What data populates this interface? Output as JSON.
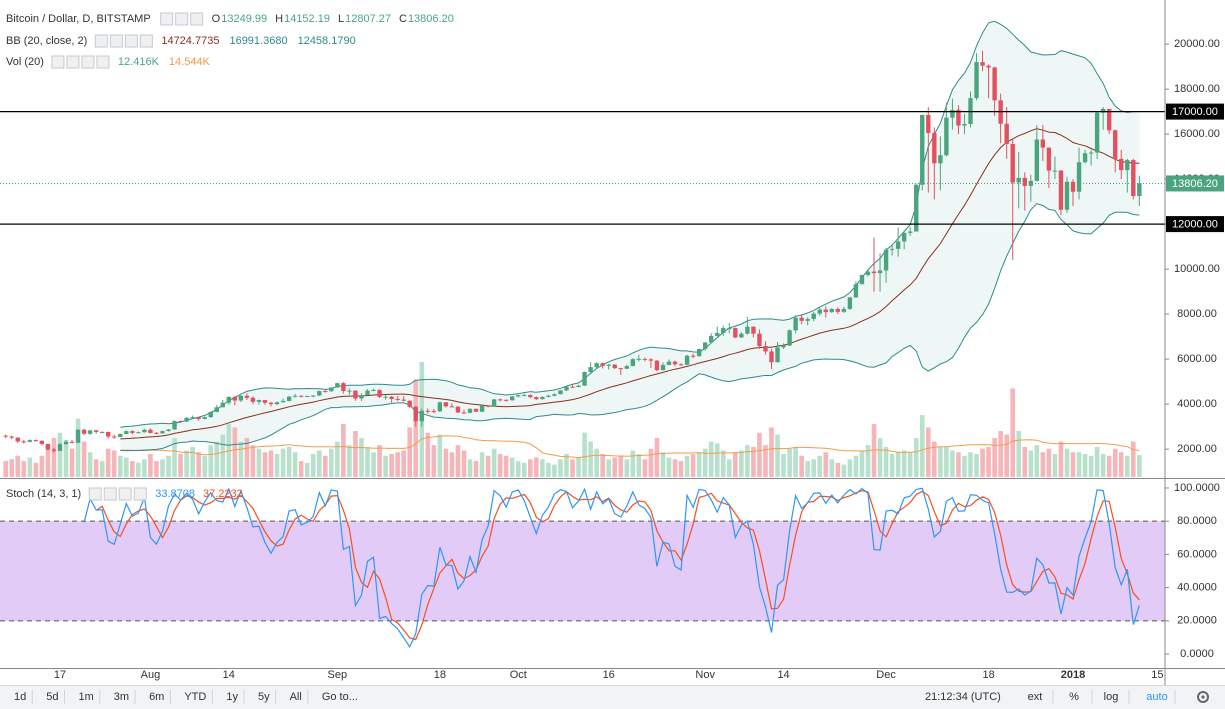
{
  "chart_data": {
    "type": "candlestick",
    "title": "Bitcoin / Dollar, D, BITSTAMP",
    "ohlc_legend": [
      {
        "key": "O",
        "value": "13249.99"
      },
      {
        "key": "H",
        "value": "14152.19"
      },
      {
        "key": "L",
        "value": "12807.27"
      },
      {
        "key": "C",
        "value": "13806.20"
      }
    ],
    "indicators": [
      {
        "name": "BB (20, close, 2)",
        "values": [
          "14724.7735",
          "16991.3680",
          "12458.1790"
        ]
      },
      {
        "name": "Vol (20)",
        "values": [
          "12.416K",
          "14.544K"
        ]
      }
    ],
    "categories": [
      null,
      null,
      null,
      null,
      null,
      null,
      null,
      null,
      null,
      "17",
      null,
      null,
      null,
      null,
      null,
      null,
      null,
      null,
      null,
      null,
      null,
      null,
      null,
      null,
      "Aug",
      null,
      null,
      null,
      null,
      null,
      null,
      null,
      null,
      null,
      null,
      null,
      null,
      "14",
      null,
      null,
      null,
      null,
      null,
      null,
      null,
      null,
      null,
      null,
      null,
      null,
      null,
      null,
      null,
      null,
      null,
      "Sep",
      null,
      null,
      null,
      null,
      null,
      null,
      null,
      null,
      null,
      null,
      null,
      null,
      null,
      null,
      null,
      null,
      "18",
      null,
      null,
      null,
      null,
      null,
      null,
      null,
      null,
      null,
      null,
      null,
      null,
      "Oct",
      null,
      null,
      null,
      null,
      null,
      null,
      null,
      null,
      null,
      null,
      null,
      null,
      null,
      null,
      "16",
      null,
      null,
      null,
      null,
      null,
      null,
      null,
      null,
      null,
      null,
      null,
      null,
      null,
      null,
      null,
      "Nov",
      null,
      null,
      null,
      null,
      null,
      null,
      null,
      null,
      null,
      null,
      null,
      null,
      "14",
      null,
      null,
      null,
      null,
      null,
      null,
      null,
      null,
      null,
      null,
      null,
      null,
      null,
      null,
      null,
      null,
      "Dec",
      null,
      null,
      null,
      null,
      null,
      null,
      null,
      null,
      null,
      null,
      null,
      null,
      null,
      null,
      null,
      null,
      "18",
      null,
      null,
      null,
      null,
      null,
      null,
      null,
      null,
      null,
      null,
      null,
      null,
      null,
      "2018",
      null,
      null,
      null,
      null,
      null,
      null,
      null,
      null,
      null,
      null,
      null,
      null,
      null,
      "15"
    ],
    "open": [
      2600,
      2560,
      2510,
      2340,
      2320,
      2400,
      2370,
      2230,
      1980,
      1920,
      2220,
      2320,
      2280,
      2860,
      2680,
      2830,
      2760,
      2760,
      2560,
      2540,
      2670,
      2800,
      2720,
      2750,
      2860,
      2720,
      2700,
      2800,
      2870,
      3250,
      3220,
      3390,
      3420,
      3340,
      3420,
      3650,
      3860,
      4060,
      4320,
      4160,
      4370,
      4280,
      4100,
      4180,
      4060,
      4000,
      4080,
      4140,
      4330,
      4370,
      4340,
      4360,
      4380,
      4580,
      4570,
      4740,
      4930,
      4580,
      4600,
      4250,
      4400,
      4600,
      4630,
      4320,
      4330,
      4230,
      4200,
      4150,
      3880,
      3240,
      3700,
      3690,
      3680,
      4080,
      3900,
      3890,
      3630,
      3610,
      3790,
      3660,
      3930,
      3890,
      4210,
      4190,
      4170,
      4340,
      4400,
      4400,
      4310,
      4220,
      4320,
      4370,
      4440,
      4610,
      4770,
      4760,
      4820,
      5430,
      5640,
      5820,
      5700,
      5750,
      5600,
      5570,
      5690,
      6000,
      6010,
      5990,
      5930,
      5510,
      5740,
      5890,
      5770,
      5750,
      6150,
      6130,
      6450,
      6740,
      7030,
      7160,
      7380,
      7380,
      6960,
      7130,
      7440,
      7130,
      6580,
      6340,
      5860,
      6520,
      6600,
      7280,
      7840,
      7700,
      7780,
      8020,
      8200,
      8090,
      8230,
      8100,
      8230,
      8740,
      9330,
      9740,
      9890,
      9820,
      9940,
      10860,
      10900,
      11230,
      11610,
      11670,
      13750,
      16850,
      16050,
      14700,
      15060,
      16730,
      17080,
      16380,
      16450,
      17600,
      19200,
      19040,
      18960,
      17500,
      16460,
      15560,
      13850,
      14050,
      13700,
      13920,
      15760,
      15400,
      14380,
      14380,
      12640,
      13880,
      13440,
      14750,
      15150,
      15180,
      16950,
      17120,
      16170,
      14900,
      14400,
      14850,
      13249.99,
      null,
      null,
      null
    ],
    "high": [
      2640,
      2600,
      2530,
      2410,
      2430,
      2430,
      2390,
      2240,
      2060,
      2270,
      2400,
      2410,
      2900,
      2900,
      2860,
      2850,
      2800,
      2780,
      2630,
      2690,
      2830,
      2830,
      2780,
      2900,
      2920,
      2760,
      2820,
      2890,
      3280,
      3270,
      3420,
      3490,
      3430,
      3450,
      3680,
      3960,
      4190,
      4330,
      4350,
      4400,
      4480,
      4350,
      4200,
      4190,
      4100,
      4120,
      4250,
      4370,
      4450,
      4390,
      4380,
      4400,
      4600,
      4650,
      4750,
      4950,
      4980,
      4700,
      4610,
      4480,
      4660,
      4690,
      4640,
      4410,
      4360,
      4360,
      4360,
      4160,
      3920,
      3800,
      3810,
      3780,
      4110,
      4090,
      4040,
      3900,
      3760,
      3810,
      3800,
      3960,
      3970,
      4230,
      4250,
      4210,
      4360,
      4410,
      4470,
      4440,
      4340,
      4350,
      4420,
      4470,
      4620,
      4790,
      4880,
      4860,
      5440,
      5860,
      5850,
      5850,
      5780,
      5780,
      5610,
      5750,
      6040,
      6190,
      6070,
      6040,
      5960,
      5860,
      5980,
      5930,
      5820,
      6190,
      6240,
      6460,
      6760,
      7150,
      7450,
      7500,
      7600,
      7400,
      7200,
      7880,
      7460,
      7320,
      6800,
      6450,
      6760,
      6700,
      7320,
      7950,
      8000,
      7860,
      8100,
      8280,
      8350,
      8260,
      8300,
      8330,
      8770,
      9460,
      9750,
      10000,
      11400,
      10700,
      10940,
      11100,
      11850,
      11630,
      11860,
      13800,
      16870,
      17200,
      16300,
      15900,
      17400,
      17580,
      17280,
      16900,
      17900,
      19600,
      19700,
      19100,
      19000,
      17800,
      17200,
      15800,
      15200,
      14300,
      14200,
      16400,
      16400,
      15400,
      15000,
      14400,
      14100,
      14000,
      15400,
      15300,
      15300,
      17000,
      17200,
      17100,
      16200,
      15300,
      14900,
      14900,
      14152.19,
      null,
      null,
      null
    ],
    "low": [
      2480,
      2450,
      2270,
      2250,
      2300,
      2330,
      2160,
      1960,
      1840,
      1910,
      2200,
      2250,
      2270,
      2620,
      2620,
      2680,
      2700,
      2460,
      2460,
      2530,
      2660,
      2660,
      2700,
      2730,
      2690,
      2650,
      2680,
      2780,
      2860,
      3180,
      3200,
      3370,
      3260,
      3320,
      3400,
      3640,
      3850,
      3980,
      3950,
      4100,
      4180,
      3990,
      3980,
      3970,
      3900,
      3950,
      4080,
      4120,
      4290,
      4300,
      4320,
      4300,
      4360,
      4510,
      4550,
      4720,
      4470,
      4410,
      4150,
      4140,
      4390,
      4570,
      4270,
      4200,
      4060,
      4140,
      4120,
      3830,
      3000,
      2980,
      3580,
      3600,
      3650,
      3850,
      3850,
      3600,
      3560,
      3600,
      3650,
      3650,
      3850,
      3880,
      4120,
      4110,
      4150,
      4300,
      4370,
      4260,
      4180,
      4200,
      4300,
      4340,
      4430,
      4580,
      4730,
      4750,
      4810,
      5410,
      5560,
      5580,
      5530,
      5560,
      5300,
      5560,
      5680,
      5900,
      5900,
      5600,
      5460,
      5490,
      5720,
      5680,
      5700,
      5730,
      6040,
      6110,
      6370,
      6730,
      7000,
      7030,
      7150,
      6930,
      6950,
      7090,
      6960,
      6460,
      6200,
      5560,
      5850,
      6450,
      6580,
      7140,
      7550,
      7500,
      7680,
      7930,
      7850,
      8050,
      8000,
      8050,
      8180,
      8730,
      9320,
      9660,
      9000,
      9000,
      9400,
      10600,
      10550,
      10880,
      11470,
      11670,
      13500,
      13400,
      13100,
      13500,
      15000,
      16200,
      16000,
      16000,
      16300,
      17500,
      18800,
      17600,
      16800,
      15600,
      14900,
      10400,
      12700,
      12600,
      13000,
      13900,
      14800,
      13600,
      14000,
      12400,
      12500,
      12800,
      13100,
      14700,
      14600,
      14900,
      16200,
      16000,
      14300,
      14000,
      13400,
      13100,
      12807.27,
      null,
      null,
      null
    ],
    "close": [
      2560,
      2510,
      2340,
      2320,
      2400,
      2370,
      2230,
      1980,
      1920,
      2220,
      2320,
      2280,
      2860,
      2680,
      2830,
      2760,
      2760,
      2560,
      2540,
      2670,
      2800,
      2720,
      2750,
      2860,
      2720,
      2700,
      2800,
      2870,
      3250,
      3220,
      3390,
      3420,
      3340,
      3420,
      3650,
      3860,
      4060,
      4320,
      4160,
      4370,
      4280,
      4100,
      4180,
      4060,
      4000,
      4080,
      4140,
      4330,
      4370,
      4340,
      4360,
      4380,
      4580,
      4570,
      4740,
      4930,
      4580,
      4600,
      4250,
      4400,
      4600,
      4630,
      4320,
      4330,
      4230,
      4200,
      4150,
      3880,
      3240,
      3700,
      3690,
      3680,
      4080,
      3900,
      3890,
      3630,
      3610,
      3790,
      3660,
      3930,
      3890,
      4210,
      4190,
      4170,
      4340,
      4400,
      4400,
      4310,
      4220,
      4320,
      4370,
      4440,
      4610,
      4770,
      4760,
      4820,
      5430,
      5640,
      5820,
      5700,
      5750,
      5600,
      5570,
      5690,
      6000,
      6010,
      5990,
      5930,
      5510,
      5740,
      5890,
      5770,
      5750,
      6150,
      6130,
      6450,
      6740,
      7030,
      7160,
      7380,
      7380,
      6960,
      7130,
      7440,
      7130,
      6580,
      6340,
      5860,
      6520,
      6600,
      7280,
      7840,
      7700,
      7780,
      8020,
      8200,
      8090,
      8230,
      8100,
      8230,
      8740,
      9330,
      9740,
      9890,
      9820,
      9940,
      10860,
      10900,
      11230,
      11610,
      11670,
      13750,
      16850,
      16050,
      14700,
      15060,
      16730,
      17080,
      16380,
      16450,
      17600,
      19200,
      19040,
      18960,
      17500,
      16460,
      15560,
      13850,
      14050,
      13700,
      13920,
      15760,
      15400,
      14380,
      14380,
      12640,
      13880,
      13440,
      14750,
      15150,
      15180,
      16950,
      17120,
      16170,
      14900,
      14400,
      14850,
      13249.99,
      13806.2,
      null,
      null,
      null
    ],
    "volume": [
      9000,
      10000,
      12000,
      9000,
      11000,
      8000,
      12000,
      18000,
      22000,
      25000,
      21000,
      16000,
      33000,
      20000,
      14000,
      10000,
      9000,
      16000,
      15000,
      12000,
      11000,
      9000,
      8000,
      10000,
      13000,
      9000,
      10000,
      12000,
      22000,
      13000,
      15000,
      17000,
      14000,
      12000,
      18000,
      20000,
      24000,
      30000,
      28000,
      20000,
      22000,
      18000,
      16000,
      14000,
      15000,
      13000,
      16000,
      17000,
      14000,
      9000,
      8000,
      13000,
      15000,
      12000,
      16000,
      20000,
      30000,
      18000,
      26000,
      22000,
      17000,
      14000,
      18000,
      12000,
      13000,
      14000,
      15000,
      28000,
      55000,
      65000,
      25000,
      18000,
      24000,
      16000,
      14000,
      18000,
      15000,
      10000,
      9000,
      14000,
      12000,
      16000,
      13000,
      12000,
      11000,
      9000,
      8000,
      10000,
      11000,
      10000,
      8000,
      7000,
      10000,
      13000,
      10000,
      11000,
      25000,
      20000,
      16000,
      13000,
      10000,
      11000,
      12000,
      10000,
      15000,
      13000,
      10000,
      16000,
      22000,
      14000,
      11000,
      10000,
      9000,
      12000,
      13000,
      14000,
      16000,
      20000,
      19000,
      15000,
      10000,
      14000,
      15000,
      18000,
      17000,
      25000,
      18000,
      28000,
      24000,
      13000,
      16000,
      17000,
      12000,
      9000,
      10000,
      12000,
      14000,
      10000,
      8000,
      7000,
      10000,
      12000,
      15000,
      18000,
      30000,
      22000,
      17000,
      13000,
      14000,
      15000,
      14000,
      22000,
      35000,
      28000,
      20000,
      17000,
      17000,
      15000,
      14000,
      12000,
      14000,
      13000,
      16000,
      17000,
      22000,
      26000,
      24000,
      50000,
      26000,
      17000,
      15000,
      18000,
      14000,
      16000,
      13000,
      20000,
      16000,
      14000,
      14000,
      13000,
      12000,
      17000,
      13000,
      12000,
      16000,
      14000,
      12000,
      20000,
      12416,
      null,
      null,
      null
    ],
    "up_color": "#4aa57f",
    "down_color": "#e3505f",
    "volume_up_color": "#b7e1cc",
    "volume_down_color": "#f6b5b8",
    "bb_color": "#2e8b88",
    "bb_basis_color": "#8a2f1d",
    "bb_fill": "#eef7f6",
    "volume_ma_color": "#f39c4a",
    "ylim": [
      760,
      21960
    ],
    "yticks": [
      {
        "value": 2000,
        "label": "2000.00"
      },
      {
        "value": 4000,
        "label": "4000.00"
      },
      {
        "value": 6000,
        "label": "6000.00"
      },
      {
        "value": 8000,
        "label": "8000.00"
      },
      {
        "value": 10000,
        "label": "10000.00"
      },
      {
        "value": 12000,
        "label": "12000.00"
      },
      {
        "value": 14000,
        "label": "14000.00"
      },
      {
        "value": 16000,
        "label": "16000.00"
      },
      {
        "value": 18000,
        "label": "18000.00"
      },
      {
        "value": 20000,
        "label": "20000.00"
      }
    ],
    "levels": [
      {
        "value": 17000,
        "label": "17000.00"
      },
      {
        "value": 12000,
        "label": "12000.00"
      }
    ],
    "last_label": "13806.20",
    "stoch": {
      "name": "Stoch (14, 3, 1)",
      "values": [
        "33.8708",
        "37.2232"
      ],
      "k_color": "#2f96f3",
      "d_color": "#f4511e",
      "band": [
        20,
        80
      ],
      "band_color": "#e3cbf8",
      "ylim": [
        -8.4,
        104.8
      ],
      "yticks": [
        {
          "value": 0,
          "label": "0.0000"
        },
        {
          "value": 20,
          "label": "20.0000"
        },
        {
          "value": 40,
          "label": "40.0000"
        },
        {
          "value": 60,
          "label": "60.0000"
        },
        {
          "value": 80,
          "label": "80.0000"
        },
        {
          "value": 100,
          "label": "100.0000"
        }
      ]
    }
  },
  "toolbar": {
    "ranges": [
      "1d",
      "5d",
      "1m",
      "3m",
      "6m",
      "YTD",
      "1y",
      "5y",
      "All"
    ],
    "goto": "Go to...",
    "clock": "21:12:34 (UTC)",
    "options": [
      "ext",
      "%",
      "log",
      "auto"
    ]
  }
}
